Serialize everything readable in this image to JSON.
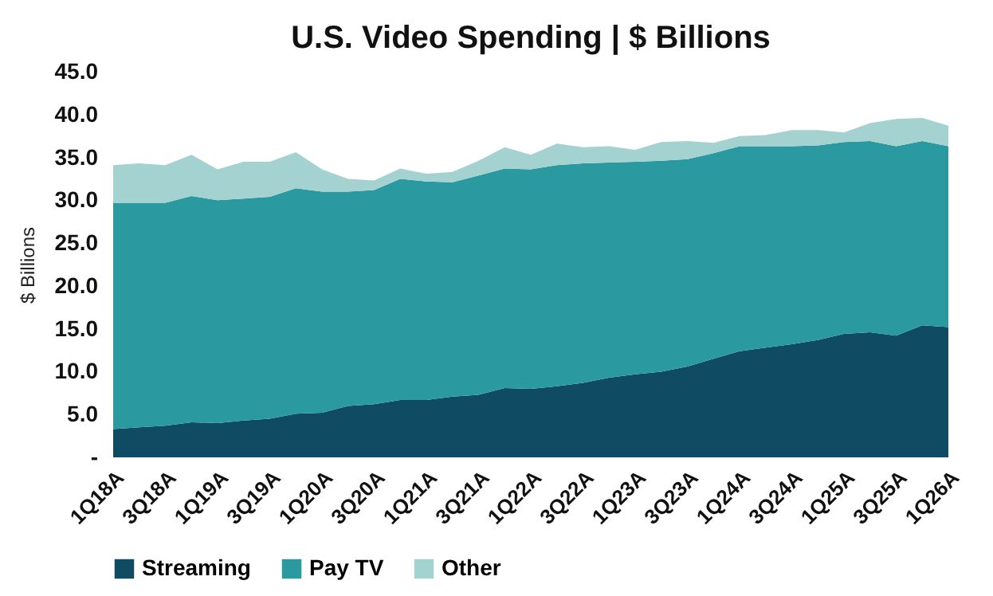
{
  "chart_data": {
    "type": "area",
    "title": "U.S. Video Spending | $ Billions",
    "ylabel": "$ Billions",
    "stacked": true,
    "categories": [
      "1Q18A",
      null,
      "3Q18A",
      null,
      "1Q19A",
      null,
      "3Q19A",
      null,
      "1Q20A",
      null,
      "3Q20A",
      null,
      "1Q21A",
      null,
      "3Q21A",
      null,
      "1Q22A",
      null,
      "3Q22A",
      null,
      "1Q23A",
      null,
      "3Q23A",
      null,
      "1Q24A",
      null,
      "3Q24A",
      null,
      "1Q25A",
      null,
      "3Q25A",
      null,
      "1Q26A"
    ],
    "series": [
      {
        "name": "Streaming",
        "color": "#0f4c64",
        "values": [
          3.3,
          3.5,
          3.7,
          4.1,
          4.0,
          4.3,
          4.5,
          5.1,
          5.2,
          6.0,
          6.2,
          6.7,
          6.7,
          7.1,
          7.3,
          8.1,
          8.0,
          8.3,
          8.7,
          9.3,
          9.7,
          10.0,
          10.6,
          11.5,
          12.4,
          12.8,
          13.2,
          13.7,
          14.4,
          14.6,
          14.2,
          15.4,
          15.2
        ]
      },
      {
        "name": "Pay TV",
        "color": "#2a9aa0",
        "values": [
          26.4,
          26.2,
          26.0,
          26.4,
          26.0,
          25.9,
          25.9,
          26.3,
          25.8,
          25.0,
          25.0,
          25.8,
          25.5,
          25.0,
          25.6,
          25.6,
          25.6,
          25.8,
          25.6,
          25.1,
          24.8,
          24.6,
          24.2,
          24.0,
          23.9,
          23.5,
          23.1,
          22.7,
          22.4,
          22.3,
          22.1,
          21.5,
          21.1
        ]
      },
      {
        "name": "Other",
        "color": "#a3d2d0",
        "values": [
          4.4,
          4.6,
          4.4,
          4.8,
          3.6,
          4.3,
          4.1,
          4.2,
          2.6,
          1.5,
          1.1,
          1.2,
          0.9,
          1.2,
          1.7,
          2.5,
          1.7,
          2.5,
          1.9,
          1.9,
          1.4,
          2.2,
          2.1,
          1.2,
          1.2,
          1.3,
          1.9,
          1.8,
          1.1,
          2.1,
          3.2,
          2.7,
          2.4
        ]
      }
    ],
    "ylim": [
      0,
      45
    ],
    "yticks": [
      {
        "value": 0,
        "label": "-"
      },
      {
        "value": 5,
        "label": "5.0"
      },
      {
        "value": 10,
        "label": "10.0"
      },
      {
        "value": 15,
        "label": "15.0"
      },
      {
        "value": 20,
        "label": "20.0"
      },
      {
        "value": 25,
        "label": "25.0"
      },
      {
        "value": 30,
        "label": "30.0"
      },
      {
        "value": 35,
        "label": "35.0"
      },
      {
        "value": 40,
        "label": "40.0"
      },
      {
        "value": 45,
        "label": "45.0"
      }
    ],
    "grid": false,
    "legend": "bottom"
  }
}
